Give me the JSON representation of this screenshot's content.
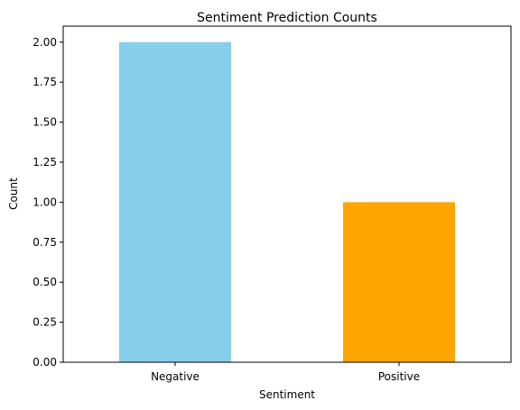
{
  "chart_data": {
    "type": "bar",
    "title": "Sentiment Prediction Counts",
    "xlabel": "Sentiment",
    "ylabel": "Count",
    "categories": [
      "Negative",
      "Positive"
    ],
    "values": [
      2,
      1
    ],
    "bar_colors": [
      "#87ceeb",
      "#ffa500"
    ],
    "ylim": [
      0,
      2.1
    ],
    "yticks": [
      "0.00",
      "0.25",
      "0.50",
      "0.75",
      "1.00",
      "1.25",
      "1.50",
      "1.75",
      "2.00"
    ],
    "grid": false,
    "legend": "none"
  }
}
